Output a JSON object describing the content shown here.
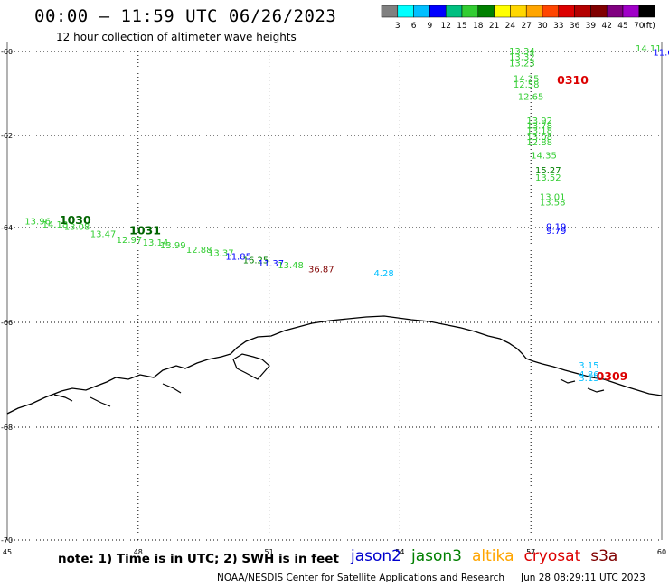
{
  "header": {
    "title": "00:00 – 11:59 UTC 06/26/2023",
    "subtitle": "12 hour collection of altimeter wave heights"
  },
  "legend": {
    "unit": "(ft)",
    "colors": [
      "#808080",
      "#00ffff",
      "#00bfff",
      "#0000ff",
      "#00bf80",
      "#32cd32",
      "#008000",
      "#ffff00",
      "#ffd700",
      "#ffa500",
      "#ff4500",
      "#dc0000",
      "#b40000",
      "#800000",
      "#800080",
      "#a000c8",
      "#000000"
    ],
    "labels": [
      "3",
      "6",
      "9",
      "12",
      "15",
      "18",
      "21",
      "24",
      "27",
      "30",
      "33",
      "36",
      "39",
      "42",
      "45",
      "70"
    ]
  },
  "axes": {
    "lon_ticks": [
      "45",
      "48",
      "51",
      "54",
      "57",
      "60"
    ],
    "lat_ticks": [
      "-60",
      "-62",
      "-64",
      "-66",
      "-68",
      "-70"
    ]
  },
  "track_labels": [
    {
      "text": "1030",
      "color": "#006400",
      "lon": 46.2,
      "lat": -63.92
    },
    {
      "text": "1031",
      "color": "#006400",
      "lon": 47.8,
      "lat": -64.14
    },
    {
      "text": "0310",
      "color": "#dc0000",
      "lon": 57.6,
      "lat": -60.77
    },
    {
      "text": "0309",
      "color": "#dc0000",
      "lon": 58.5,
      "lat": -67.1
    }
  ],
  "wave_heights": [
    {
      "text": "14.11",
      "color": "#32cd32",
      "lon": 59.4,
      "lat": -60.0
    },
    {
      "text": "11.6",
      "color": "#0000ff",
      "lon": 59.8,
      "lat": -60.1
    },
    {
      "text": "13.34",
      "color": "#32cd32",
      "lon": 56.5,
      "lat": -60.06
    },
    {
      "text": "13.32",
      "color": "#32cd32",
      "lon": 56.5,
      "lat": -60.2
    },
    {
      "text": "13.23",
      "color": "#32cd32",
      "lon": 56.5,
      "lat": -60.36
    },
    {
      "text": "14.25",
      "color": "#32cd32",
      "lon": 56.6,
      "lat": -60.72
    },
    {
      "text": "12.58",
      "color": "#32cd32",
      "lon": 56.6,
      "lat": -60.86
    },
    {
      "text": "12.65",
      "color": "#32cd32",
      "lon": 56.7,
      "lat": -61.15
    },
    {
      "text": "13.92",
      "color": "#32cd32",
      "lon": 56.9,
      "lat": -61.72
    },
    {
      "text": "13.78",
      "color": "#32cd32",
      "lon": 56.9,
      "lat": -61.84
    },
    {
      "text": "13.18",
      "color": "#32cd32",
      "lon": 56.9,
      "lat": -61.96
    },
    {
      "text": "13.08",
      "color": "#32cd32",
      "lon": 56.9,
      "lat": -62.1
    },
    {
      "text": "12.88",
      "color": "#32cd32",
      "lon": 56.9,
      "lat": -62.22
    },
    {
      "text": "14.35",
      "color": "#32cd32",
      "lon": 57.0,
      "lat": -62.5
    },
    {
      "text": "15.27",
      "color": "#008000",
      "lon": 57.1,
      "lat": -62.82
    },
    {
      "text": "13.52",
      "color": "#32cd32",
      "lon": 57.1,
      "lat": -62.98
    },
    {
      "text": "13.01",
      "color": "#32cd32",
      "lon": 57.2,
      "lat": -63.4
    },
    {
      "text": "13.58",
      "color": "#32cd32",
      "lon": 57.2,
      "lat": -63.52
    },
    {
      "text": "9.19",
      "color": "#0000ff",
      "lon": 57.35,
      "lat": -64.05
    },
    {
      "text": "9.79",
      "color": "#0000ff",
      "lon": 57.35,
      "lat": -64.13
    },
    {
      "text": "13.96",
      "color": "#32cd32",
      "lon": 45.4,
      "lat": -63.93
    },
    {
      "text": "14.18",
      "color": "#32cd32",
      "lon": 45.8,
      "lat": -64.0
    },
    {
      "text": "13.08",
      "color": "#32cd32",
      "lon": 46.3,
      "lat": -64.05
    },
    {
      "text": "13.47",
      "color": "#32cd32",
      "lon": 46.9,
      "lat": -64.2
    },
    {
      "text": "12.97",
      "color": "#32cd32",
      "lon": 47.5,
      "lat": -64.32
    },
    {
      "text": "13.14",
      "color": "#32cd32",
      "lon": 48.1,
      "lat": -64.38
    },
    {
      "text": "13.99",
      "color": "#32cd32",
      "lon": 48.5,
      "lat": -64.44
    },
    {
      "text": "12.88",
      "color": "#32cd32",
      "lon": 49.1,
      "lat": -64.53
    },
    {
      "text": "13.37",
      "color": "#32cd32",
      "lon": 49.6,
      "lat": -64.6
    },
    {
      "text": "11.85",
      "color": "#0000ff",
      "lon": 50.0,
      "lat": -64.68
    },
    {
      "text": "16.25",
      "color": "#008000",
      "lon": 50.4,
      "lat": -64.75
    },
    {
      "text": "11.37",
      "color": "#0000ff",
      "lon": 50.75,
      "lat": -64.82
    },
    {
      "text": "13.48",
      "color": "#32cd32",
      "lon": 51.2,
      "lat": -64.86
    },
    {
      "text": "36.87",
      "color": "#800000",
      "lon": 51.9,
      "lat": -64.94
    },
    {
      "text": "4.28",
      "color": "#00bfff",
      "lon": 53.4,
      "lat": -65.03
    },
    {
      "text": "3.15",
      "color": "#00bfff",
      "lon": 58.1,
      "lat": -66.88
    },
    {
      "text": "4.86",
      "color": "#00bfff",
      "lon": 58.1,
      "lat": -67.05
    },
    {
      "text": "3.13",
      "color": "#00bfff",
      "lon": 58.1,
      "lat": -67.12
    }
  ],
  "footer": {
    "note": "note: 1) Time is in UTC; 2) SWH is in feet",
    "satellites": [
      {
        "name": "jason2",
        "color": "#0000cd"
      },
      {
        "name": "jason3",
        "color": "#008000"
      },
      {
        "name": "altika",
        "color": "#ffa500"
      },
      {
        "name": "cryosat",
        "color": "#dc0000"
      },
      {
        "name": "s3a",
        "color": "#800000"
      }
    ],
    "credit": "NOAA/NESDIS Center for Satellite Applications and Research",
    "timestamp": "Jun 28 08:29:11 UTC 2023"
  }
}
